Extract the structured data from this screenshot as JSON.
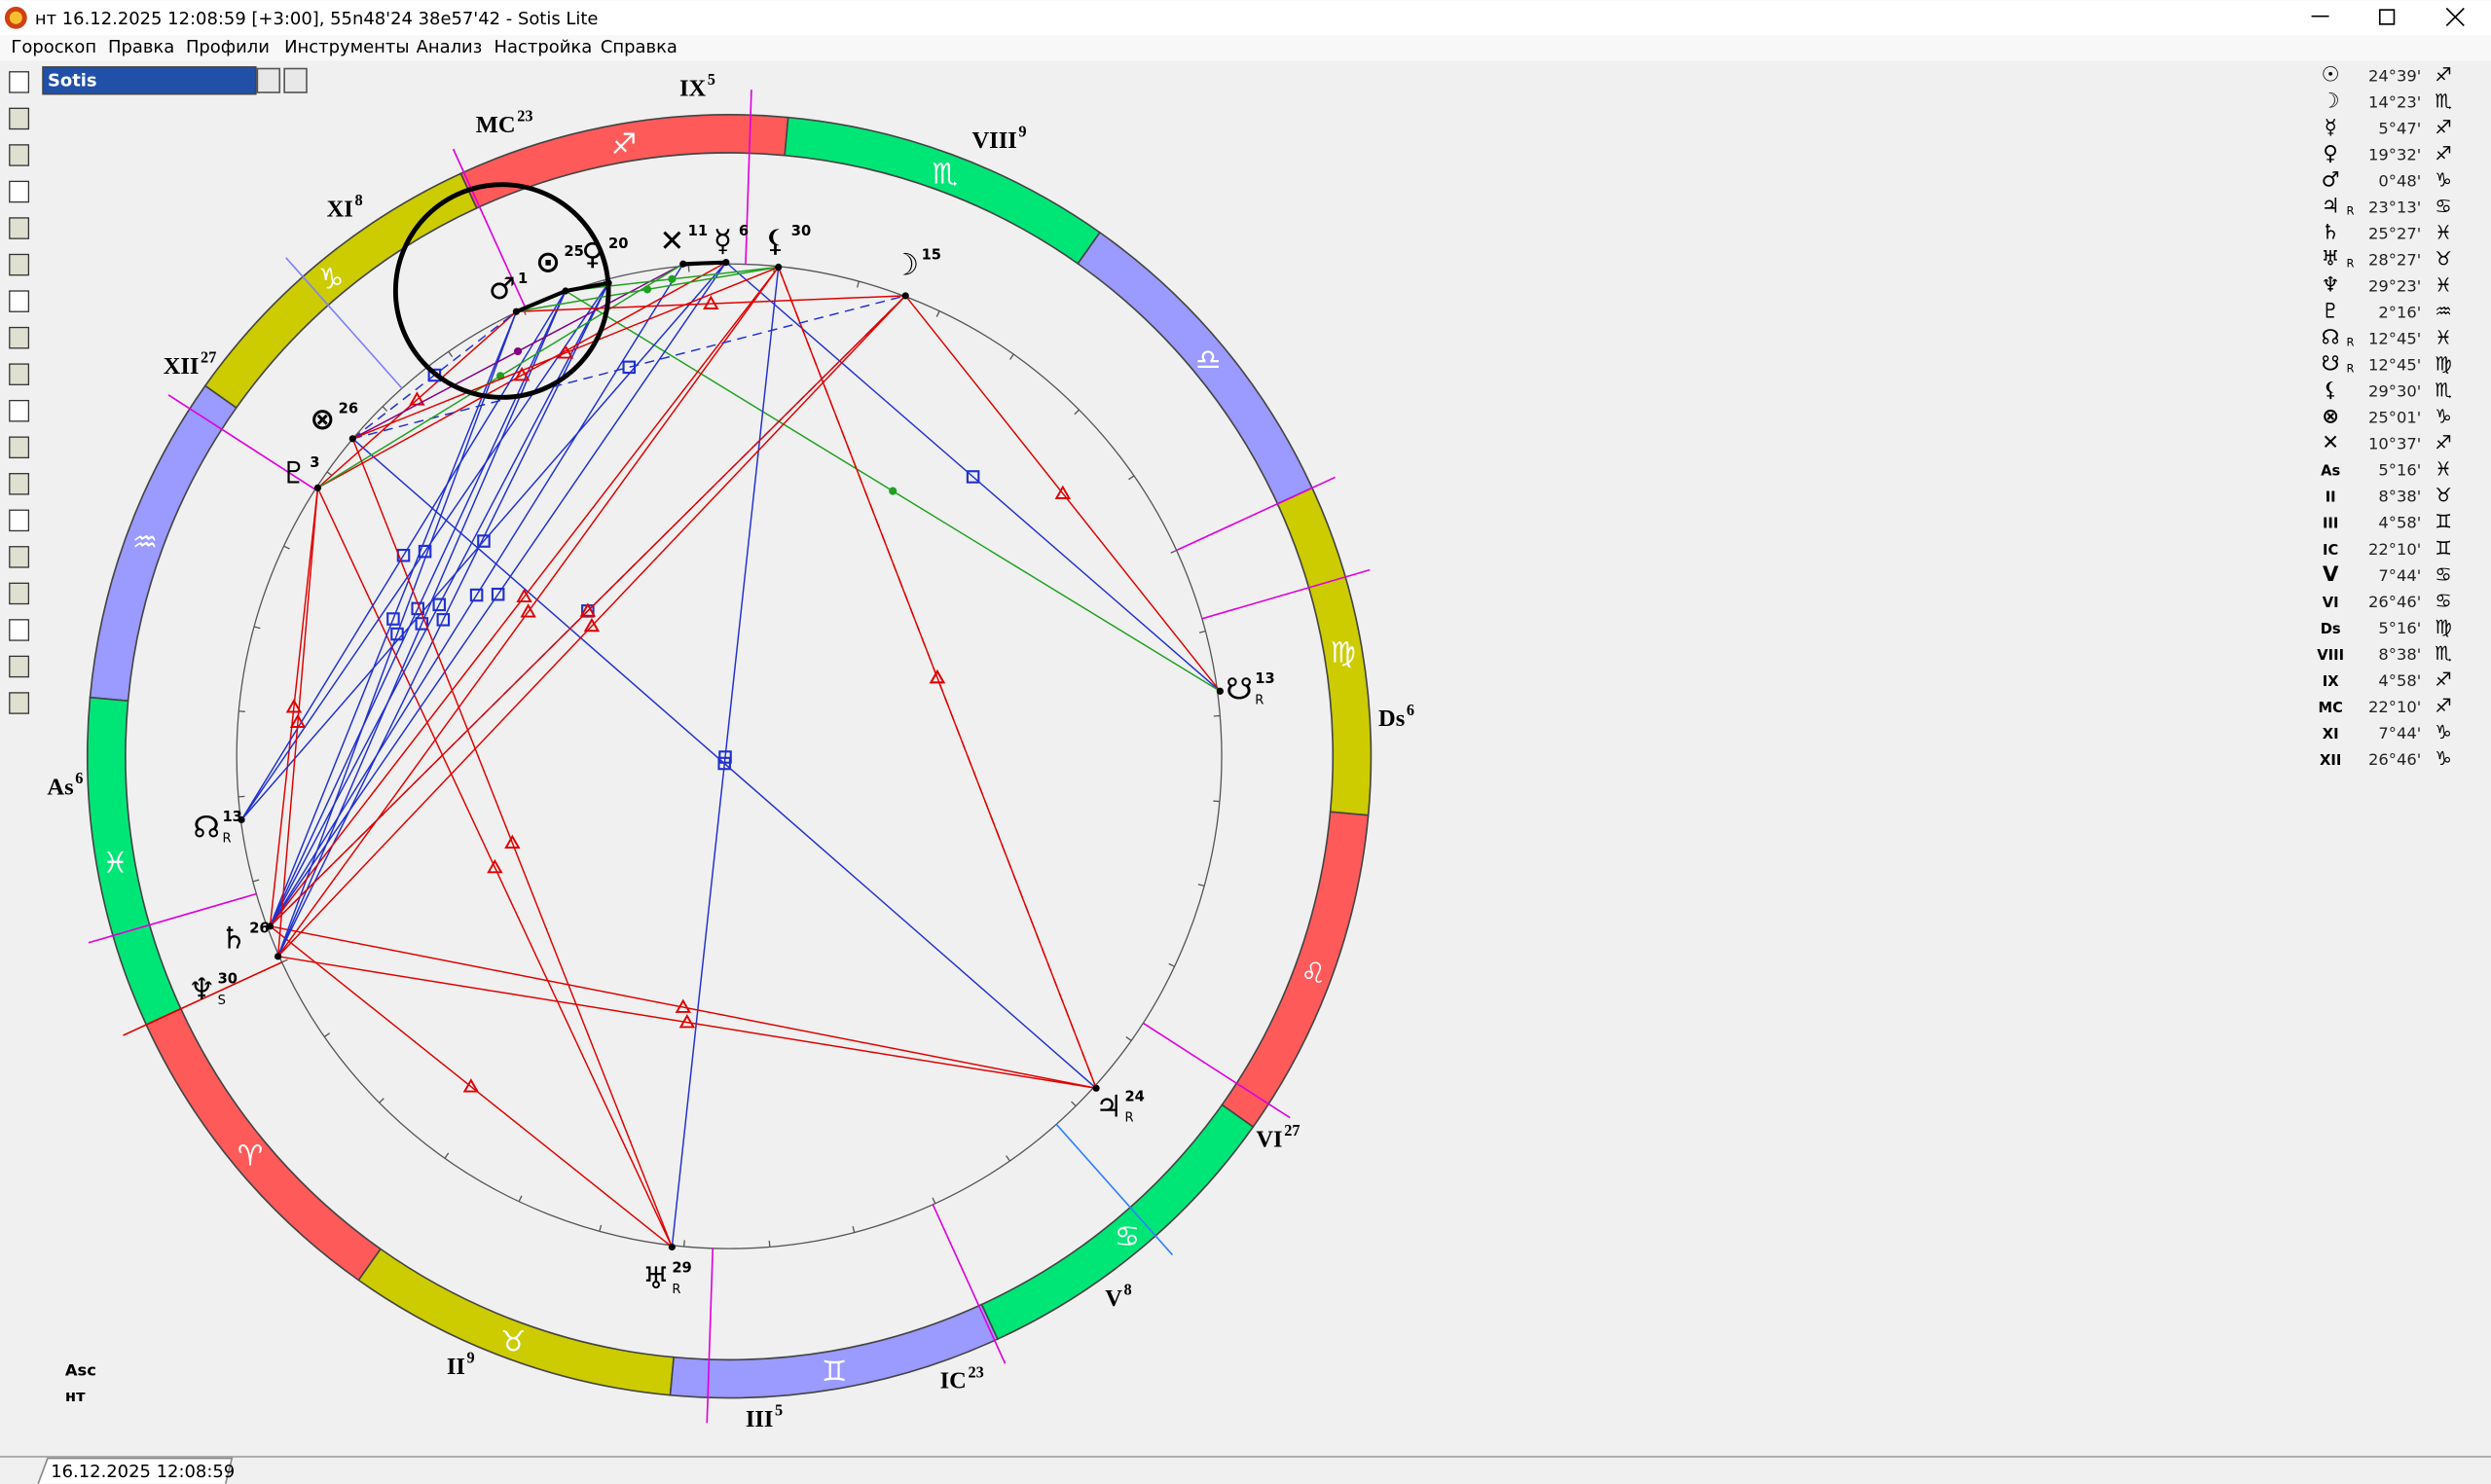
{
  "window": {
    "title": "нт 16.12.2025 12:08:59 [+3:00], 55n48'24 38e57'42 - Sotis Lite",
    "menu": [
      "Гороскоп",
      "Правка",
      "Профили",
      "Инструменты",
      "Анализ",
      "Настройка",
      "Справка"
    ],
    "profile": "Sotis"
  },
  "chart": {
    "houses": [
      {
        "label": "IX",
        "degree": "5"
      },
      {
        "label": "VIII",
        "degree": "9"
      },
      {
        "label": "MC",
        "degree": "23"
      },
      {
        "label": "XI",
        "degree": "8"
      },
      {
        "label": "XII",
        "degree": "27"
      },
      {
        "label": "As",
        "degree": "6"
      },
      {
        "label": "Ds",
        "degree": "6"
      },
      {
        "label": "VI",
        "degree": "27"
      },
      {
        "label": "V",
        "degree": "8"
      },
      {
        "label": "IC",
        "degree": "23"
      },
      {
        "label": "III",
        "degree": "5"
      },
      {
        "label": "II",
        "degree": "9"
      }
    ],
    "signs": [
      "♈",
      "♉",
      "♊",
      "♋",
      "♌",
      "♍",
      "♎",
      "♏",
      "♐",
      "♑",
      "♒",
      "♓"
    ],
    "planets": [
      {
        "glyph": "♂",
        "degree": "1"
      },
      {
        "glyph": "⊙",
        "degree": "25"
      },
      {
        "glyph": "♀",
        "degree": "20"
      },
      {
        "glyph": "✕",
        "degree": "11"
      },
      {
        "glyph": "☿",
        "degree": "6"
      },
      {
        "glyph": "⚸",
        "degree": "30"
      },
      {
        "glyph": "☽",
        "degree": "15"
      },
      {
        "glyph": "☋",
        "degree": "13",
        "sub": "R"
      },
      {
        "glyph": "♃",
        "degree": "24",
        "sub": "R"
      },
      {
        "glyph": "♅",
        "degree": "29",
        "sub": "R"
      },
      {
        "glyph": "♆",
        "degree": "30",
        "sub": "S"
      },
      {
        "glyph": "♄",
        "degree": "26"
      },
      {
        "glyph": "☊",
        "degree": "13",
        "sub": "R"
      },
      {
        "glyph": "♇",
        "degree": "3"
      },
      {
        "glyph": "⊗",
        "degree": "26"
      }
    ],
    "footer": [
      "Asc",
      "нт"
    ]
  },
  "positions": [
    {
      "symbol": "☉",
      "degree": "24°39'",
      "sign": "♐"
    },
    {
      "symbol": "☽",
      "degree": "14°23'",
      "sign": "♏"
    },
    {
      "symbol": "☿",
      "degree": "5°47'",
      "sign": "♐"
    },
    {
      "symbol": "♀",
      "degree": "19°32'",
      "sign": "♐"
    },
    {
      "symbol": "♂",
      "degree": "0°48'",
      "sign": "♑"
    },
    {
      "symbol": "♃",
      "retro": "R",
      "degree": "23°13'",
      "sign": "♋"
    },
    {
      "symbol": "♄",
      "degree": "25°27'",
      "sign": "♓"
    },
    {
      "symbol": "♅",
      "retro": "R",
      "degree": "28°27'",
      "sign": "♉"
    },
    {
      "symbol": "♆",
      "degree": "29°23'",
      "sign": "♓"
    },
    {
      "symbol": "♇",
      "degree": "2°16'",
      "sign": "♒"
    },
    {
      "symbol": "☊",
      "retro": "R",
      "degree": "12°45'",
      "sign": "♓"
    },
    {
      "symbol": "☋",
      "retro": "R",
      "degree": "12°45'",
      "sign": "♍"
    },
    {
      "symbol": "⚸",
      "degree": "29°30'",
      "sign": "♏"
    },
    {
      "symbol": "⊗",
      "degree": "25°01'",
      "sign": "♑"
    },
    {
      "symbol": "✕",
      "degree": "10°37'",
      "sign": "♐"
    },
    {
      "symbol": "As",
      "degree": "5°16'",
      "sign": "♓"
    },
    {
      "symbol": "II",
      "degree": "8°38'",
      "sign": "♉"
    },
    {
      "symbol": "III",
      "degree": "4°58'",
      "sign": "♊"
    },
    {
      "symbol": "IC",
      "degree": "22°10'",
      "sign": "♊"
    },
    {
      "symbol": "V",
      "degree": "7°44'",
      "sign": "♋"
    },
    {
      "symbol": "VI",
      "degree": "26°46'",
      "sign": "♋"
    },
    {
      "symbol": "Ds",
      "degree": "5°16'",
      "sign": "♍"
    },
    {
      "symbol": "VIII",
      "degree": "8°38'",
      "sign": "♏"
    },
    {
      "symbol": "IX",
      "degree": "4°58'",
      "sign": "♐"
    },
    {
      "symbol": "MC",
      "degree": "22°10'",
      "sign": "♐"
    },
    {
      "symbol": "XI",
      "degree": "7°44'",
      "sign": "♑"
    },
    {
      "symbol": "XII",
      "degree": "26°46'",
      "sign": "♑"
    }
  ],
  "status": {
    "tab": "16.12.2025 12:08:59"
  }
}
